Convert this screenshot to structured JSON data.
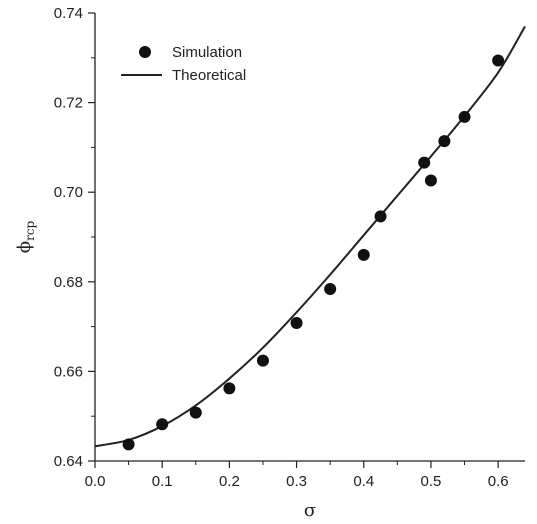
{
  "chart_data": {
    "type": "scatter",
    "xlabel": "σ",
    "ylabel_main": "ϕ",
    "ylabel_sub": "rcp",
    "xlim": [
      0.0,
      0.64
    ],
    "ylim": [
      0.64,
      0.74
    ],
    "x_ticks": [
      "0.0",
      "0.1",
      "0.2",
      "0.3",
      "0.4",
      "0.5",
      "0.6"
    ],
    "y_ticks": [
      "0.64",
      "0.66",
      "0.68",
      "0.70",
      "0.72",
      "0.74"
    ],
    "legend_position": "top-left",
    "colors": {
      "marker": "#111111",
      "line": "#222222",
      "axis": "#222222"
    },
    "series": [
      {
        "name": "Simulation",
        "kind": "markers",
        "x": [
          0.05,
          0.1,
          0.15,
          0.2,
          0.25,
          0.3,
          0.35,
          0.4,
          0.425,
          0.49,
          0.5,
          0.52,
          0.55,
          0.6
        ],
        "y": [
          0.6437,
          0.6482,
          0.6508,
          0.6562,
          0.6624,
          0.6708,
          0.6784,
          0.686,
          0.6946,
          0.7066,
          0.7026,
          0.7114,
          0.7168,
          0.7294
        ]
      },
      {
        "name": "Theoretical",
        "kind": "line",
        "x": [
          0.0,
          0.05,
          0.1,
          0.15,
          0.2,
          0.25,
          0.3,
          0.35,
          0.4,
          0.45,
          0.5,
          0.55,
          0.6,
          0.64
        ],
        "y": [
          0.6433,
          0.6447,
          0.6478,
          0.6524,
          0.6584,
          0.6653,
          0.6732,
          0.6816,
          0.6904,
          0.6992,
          0.708,
          0.717,
          0.7267,
          0.737
        ]
      }
    ]
  }
}
